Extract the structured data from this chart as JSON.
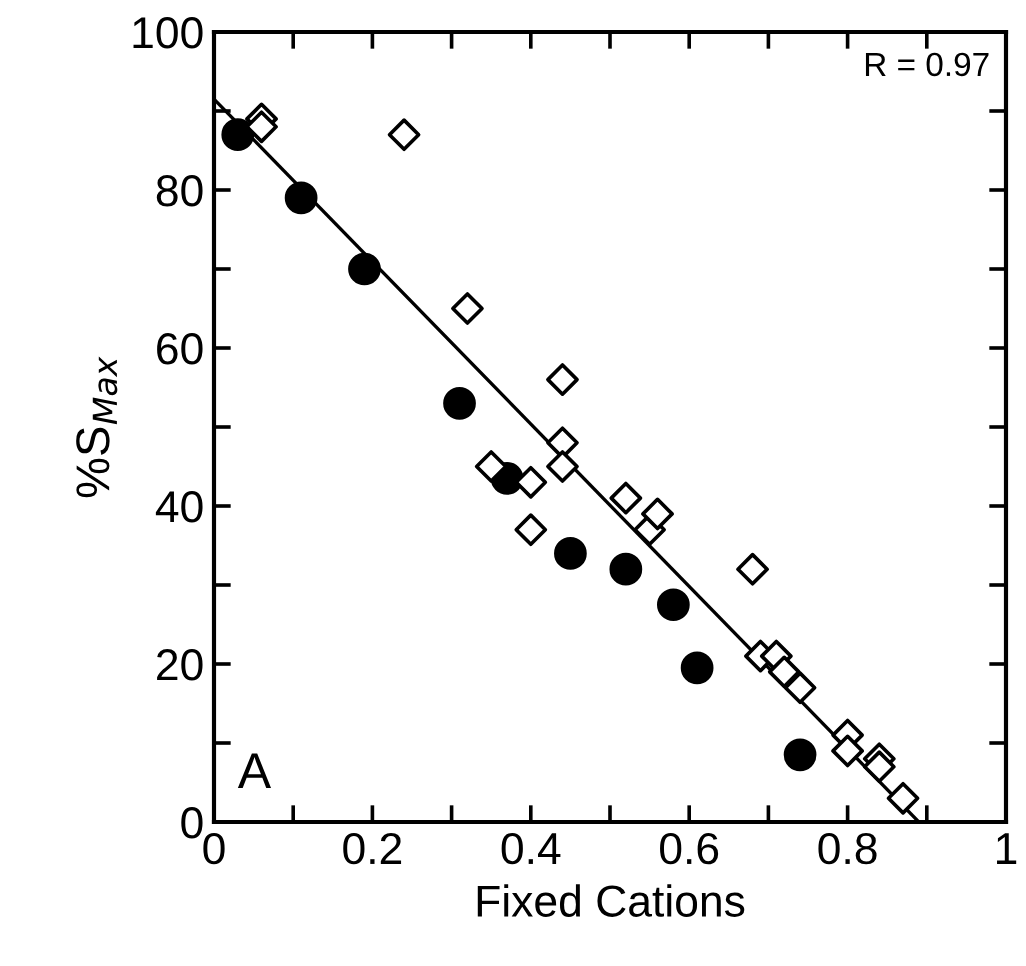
{
  "chart_data": {
    "type": "scatter",
    "xlabel": "Fixed Cations",
    "ylabel": "%S$_{Max}$",
    "xlim": [
      0,
      1
    ],
    "ylim": [
      0,
      100
    ],
    "xticks": [
      0,
      {
        "value": 0.1,
        "label": null
      },
      0.2,
      {
        "value": 0.3,
        "label": null
      },
      0.4,
      {
        "value": 0.5,
        "label": null
      },
      0.6,
      {
        "value": 0.7,
        "label": null
      },
      0.8,
      {
        "value": 0.9,
        "label": null
      },
      1
    ],
    "yticks": [
      0,
      {
        "value": 10,
        "label": null
      },
      20,
      {
        "value": 30,
        "label": null
      },
      40,
      {
        "value": 50,
        "label": null
      },
      60,
      {
        "value": 70,
        "label": null
      },
      80,
      {
        "value": 90,
        "label": null
      },
      100
    ],
    "grid": false,
    "annotations": [
      "R = 0.97",
      "A"
    ],
    "series": [
      {
        "marker": "circle",
        "color": "#000000",
        "x": [
          0.03,
          0.11,
          0.19,
          0.31,
          0.37,
          0.45,
          0.52,
          0.58,
          0.61,
          0.74
        ],
        "values": [
          87,
          79,
          70,
          53,
          43.5,
          34,
          32,
          27.5,
          19.5,
          8.5
        ]
      },
      {
        "marker": "diamond",
        "color": "#000000",
        "x": [
          0.06,
          0.06,
          0.24,
          0.32,
          0.35,
          0.4,
          0.4,
          0.44,
          0.44,
          0.44,
          0.52,
          0.55,
          0.56,
          0.68,
          0.69,
          0.71,
          0.72,
          0.74,
          0.8,
          0.8,
          0.84,
          0.84,
          0.87
        ],
        "values": [
          89,
          88,
          87,
          65,
          45,
          43,
          37,
          56,
          48,
          45,
          41,
          37,
          39,
          32,
          21,
          21,
          19,
          17,
          11,
          9,
          8,
          7,
          3
        ]
      },
      {
        "type": "line",
        "marker": "none",
        "line_style": "solid",
        "color": "#000000",
        "x": [
          0,
          0.89
        ],
        "values": [
          91.5,
          0
        ]
      }
    ]
  }
}
